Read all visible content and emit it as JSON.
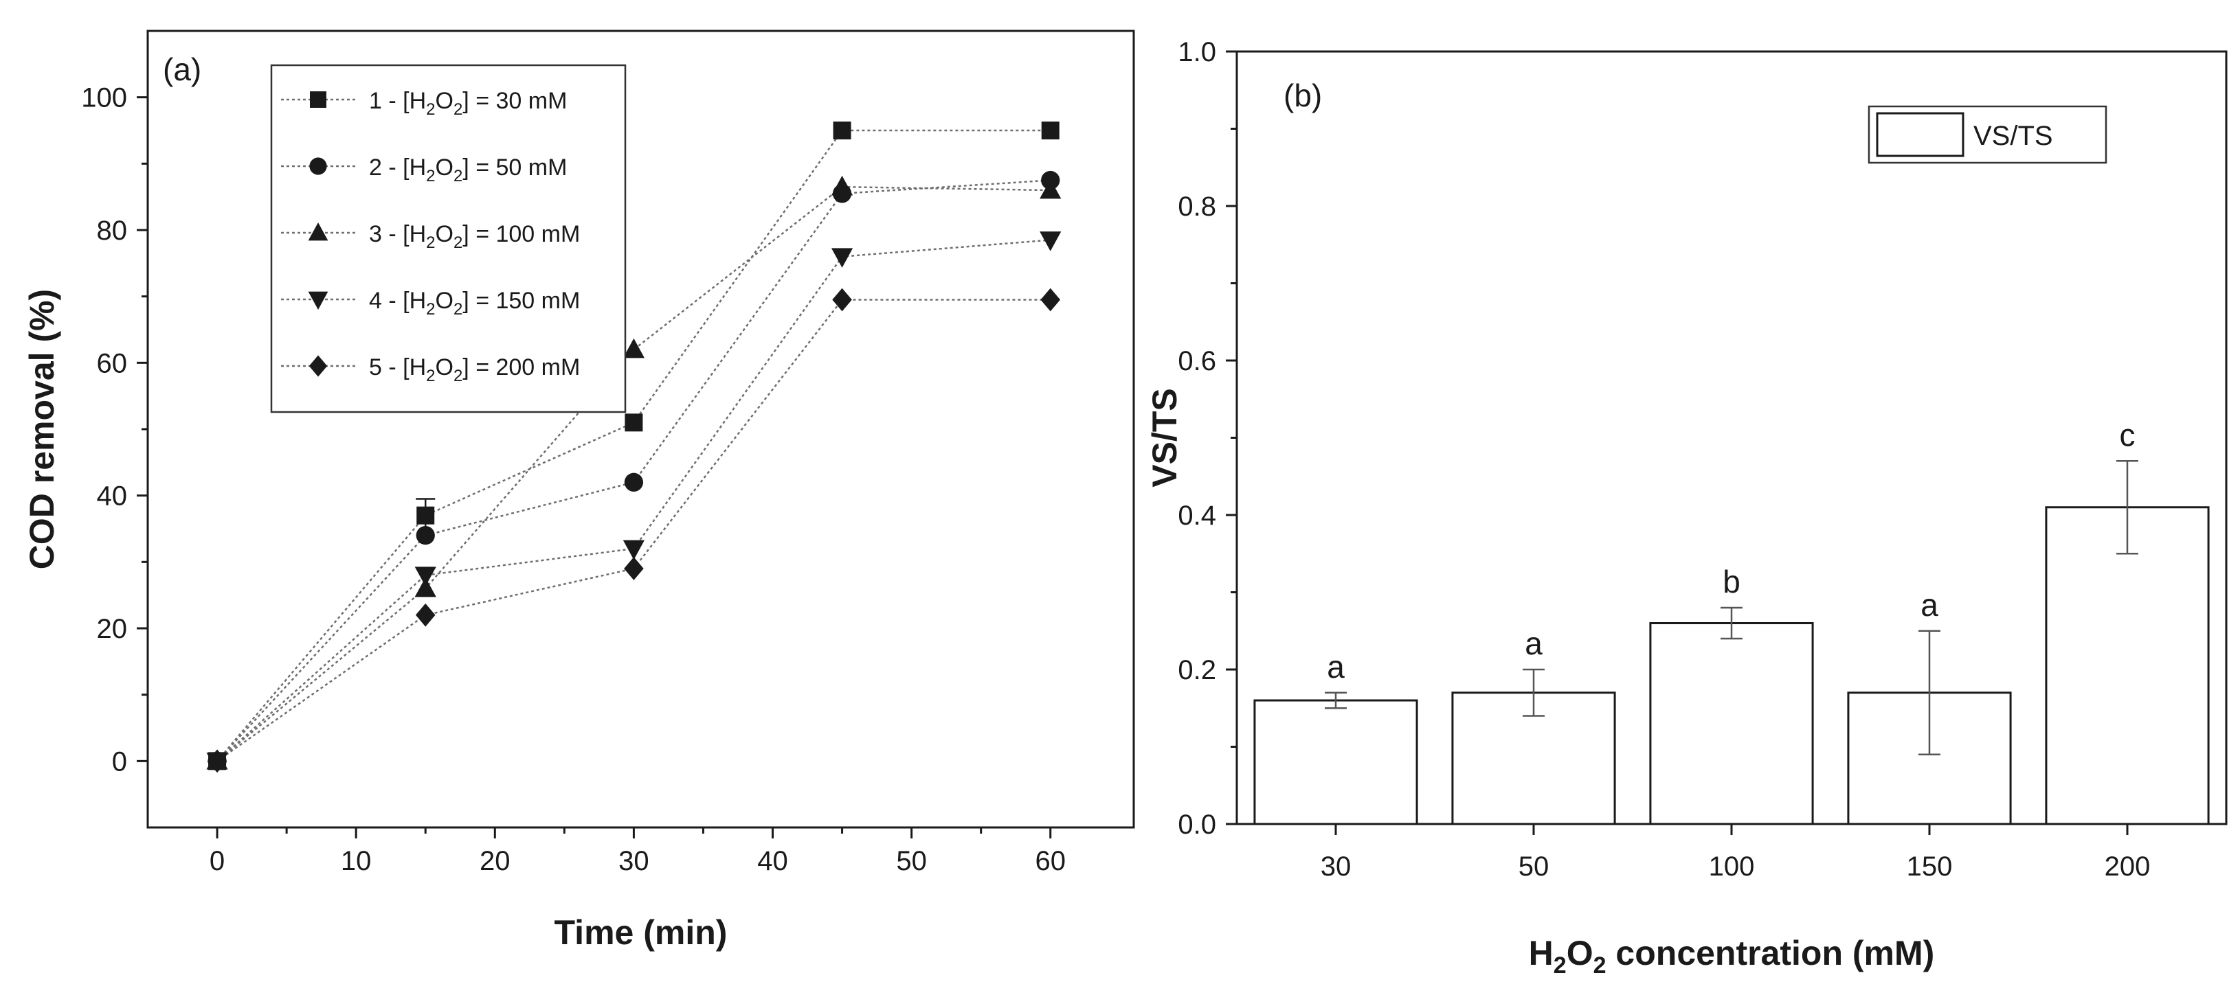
{
  "chart_data": [
    {
      "type": "line",
      "panel_label": "(a)",
      "title": "",
      "xlabel": "Time (min)",
      "ylabel": "COD removal (%)",
      "xlim": [
        -5,
        66
      ],
      "ylim": [
        -10,
        110
      ],
      "xticks": [
        0,
        10,
        20,
        30,
        40,
        50,
        60
      ],
      "yticks": [
        0,
        20,
        40,
        60,
        80,
        100
      ],
      "x": [
        0,
        15,
        30,
        45,
        60
      ],
      "legend_position": "top-left",
      "series": [
        {
          "name": "1 - [H2O2] = 30 mM",
          "legend_prefix": "1 - [H",
          "legend_suffix": "] = 30 mM",
          "marker": "square",
          "values": [
            0,
            37,
            51,
            95,
            95
          ],
          "errors": [
            0,
            2.5,
            0,
            0,
            0
          ]
        },
        {
          "name": "2 - [H2O2] = 50 mM",
          "legend_prefix": "2 - [H",
          "legend_suffix": "] = 50 mM",
          "marker": "circle",
          "values": [
            0,
            34,
            42,
            85.5,
            87.5
          ],
          "errors": [
            0,
            0,
            0,
            0,
            0
          ]
        },
        {
          "name": "3 - [H2O2] = 100 mM",
          "legend_prefix": "3 - [H",
          "legend_suffix": "] = 100 mM",
          "marker": "triangle-up",
          "values": [
            0,
            26,
            62,
            86.5,
            86
          ],
          "errors": [
            0,
            0,
            0,
            0,
            0
          ]
        },
        {
          "name": "4 - [H2O2] = 150 mM",
          "legend_prefix": "4 - [H",
          "legend_suffix": "] = 150 mM",
          "marker": "triangle-down",
          "values": [
            0,
            28,
            32,
            76,
            78.5
          ],
          "errors": [
            0,
            0,
            0,
            0,
            0
          ]
        },
        {
          "name": "5 - [H2O2] = 200 mM",
          "legend_prefix": "5 - [H",
          "legend_suffix": "] = 200 mM",
          "marker": "diamond",
          "values": [
            0,
            22,
            29,
            69.5,
            69.5
          ],
          "errors": [
            0,
            0,
            0,
            0,
            0
          ]
        }
      ]
    },
    {
      "type": "bar",
      "panel_label": "(b)",
      "title": "",
      "xlabel_prefix": "H",
      "xlabel_mid": "O",
      "xlabel_suffix": " concentration (mM)",
      "ylabel": "VS/TS",
      "ylim": [
        0.0,
        1.0
      ],
      "yticks": [
        0.0,
        0.2,
        0.4,
        0.6,
        0.8,
        1.0
      ],
      "ytick_labels": [
        "0.0",
        "0.2",
        "0.4",
        "0.6",
        "0.8",
        "1.0"
      ],
      "categories": [
        "30",
        "50",
        "100",
        "150",
        "200"
      ],
      "values": [
        0.16,
        0.17,
        0.26,
        0.17,
        0.41
      ],
      "errors": [
        0.01,
        0.03,
        0.02,
        0.08,
        0.06
      ],
      "letters": [
        "a",
        "a",
        "b",
        "a",
        "c"
      ],
      "legend_position": "top-right",
      "series": [
        {
          "name": "VS/TS"
        }
      ]
    }
  ]
}
